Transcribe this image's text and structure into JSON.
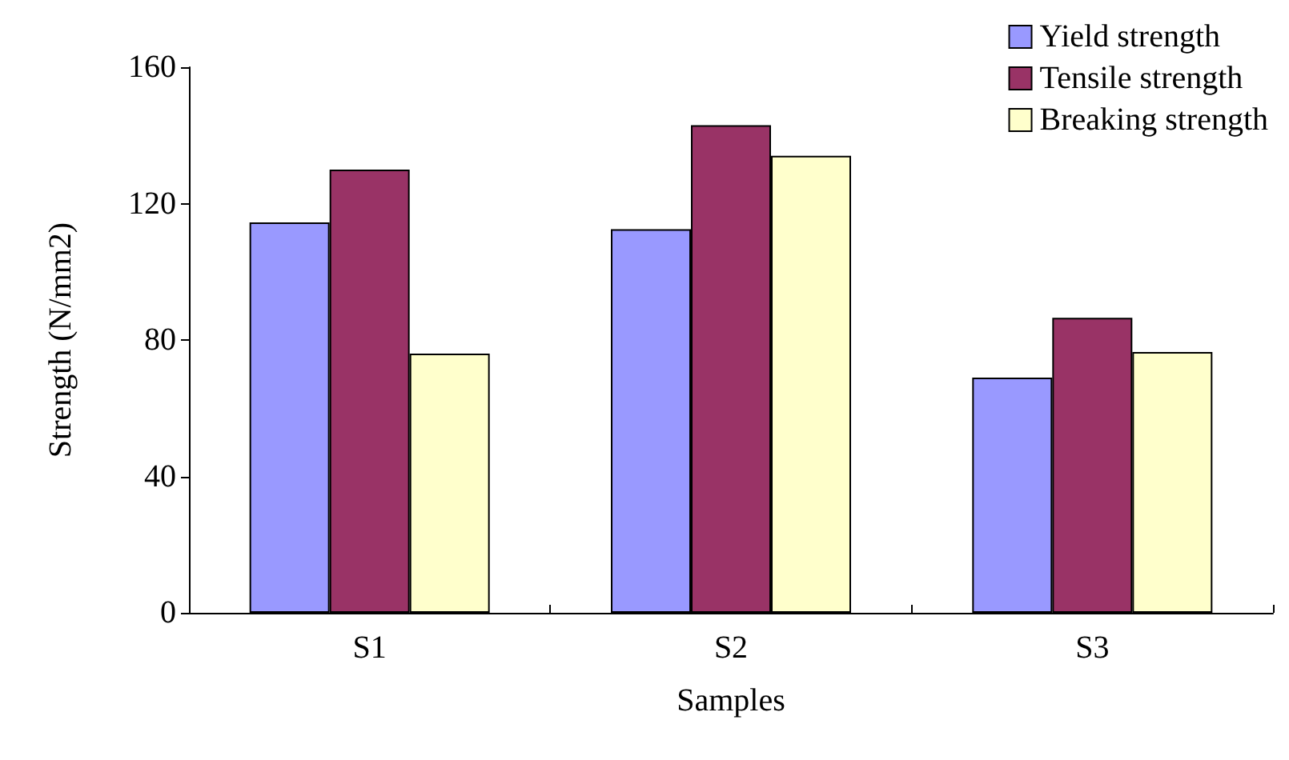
{
  "chart_data": {
    "type": "bar",
    "xlabel": "Samples",
    "ylabel": "Strength (N/mm2)",
    "categories": [
      "S1",
      "S2",
      "S3"
    ],
    "series": [
      {
        "name": "Yield strength",
        "color": "#9999ff",
        "values": [
          114.5,
          112.5,
          69
        ]
      },
      {
        "name": "Tensile strength",
        "color": "#993366",
        "values": [
          130,
          143,
          86.5
        ]
      },
      {
        "name": "Breaking strength",
        "color": "#ffffcc",
        "values": [
          76,
          134,
          76.5
        ]
      }
    ],
    "ylim": [
      0,
      160
    ],
    "yticks": [
      0,
      40,
      80,
      120,
      160
    ],
    "grid": false,
    "legend": "top right"
  }
}
